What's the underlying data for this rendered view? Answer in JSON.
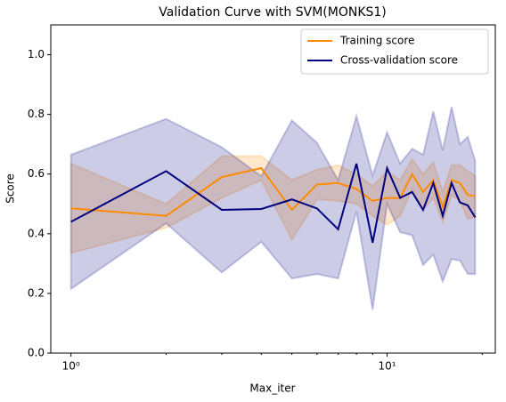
{
  "chart_data": {
    "type": "line",
    "title": "Validation Curve with SVM(MONKS1)",
    "x_label": "Max_iter",
    "y_label": "Score",
    "x": [
      1,
      2,
      3,
      4,
      5,
      6,
      7,
      8,
      9,
      10,
      11,
      12,
      13,
      14,
      15,
      16,
      17,
      18,
      19
    ],
    "series": [
      {
        "name": "Training score",
        "color": "#ff8c00",
        "values": [
          0.485,
          0.46,
          0.59,
          0.62,
          0.48,
          0.565,
          0.57,
          0.55,
          0.51,
          0.52,
          0.52,
          0.6,
          0.54,
          0.58,
          0.49,
          0.58,
          0.57,
          0.53,
          0.525
        ],
        "std": [
          0.15,
          0.04,
          0.07,
          0.04,
          0.1,
          0.05,
          0.06,
          0.05,
          0.05,
          0.09,
          0.06,
          0.05,
          0.06,
          0.06,
          0.05,
          0.05,
          0.06,
          0.08,
          0.07
        ]
      },
      {
        "name": "Cross-validation score",
        "color": "#000080",
        "values": [
          0.44,
          0.61,
          0.48,
          0.483,
          0.515,
          0.485,
          0.415,
          0.635,
          0.37,
          0.62,
          0.52,
          0.54,
          0.48,
          0.57,
          0.46,
          0.57,
          0.505,
          0.495,
          0.455
        ],
        "std": [
          0.225,
          0.175,
          0.21,
          0.11,
          0.265,
          0.22,
          0.165,
          0.16,
          0.225,
          0.12,
          0.115,
          0.145,
          0.185,
          0.24,
          0.22,
          0.255,
          0.195,
          0.23,
          0.19
        ]
      }
    ],
    "log_x": true,
    "xlim": [
      0.863,
      22.0
    ],
    "xticks": [
      {
        "value": 1,
        "label": "10⁰"
      },
      {
        "value": 10,
        "label": "10¹"
      }
    ],
    "xminor": [
      2,
      3,
      4,
      5,
      6,
      7,
      8,
      9,
      20
    ],
    "ylim": [
      0,
      1.1
    ],
    "yticks": [
      {
        "value": 0,
        "label": "0.0"
      },
      0.2,
      0.4,
      0.6,
      0.8,
      {
        "value": 1,
        "label": "1.0"
      }
    ],
    "legend": "upper right"
  }
}
